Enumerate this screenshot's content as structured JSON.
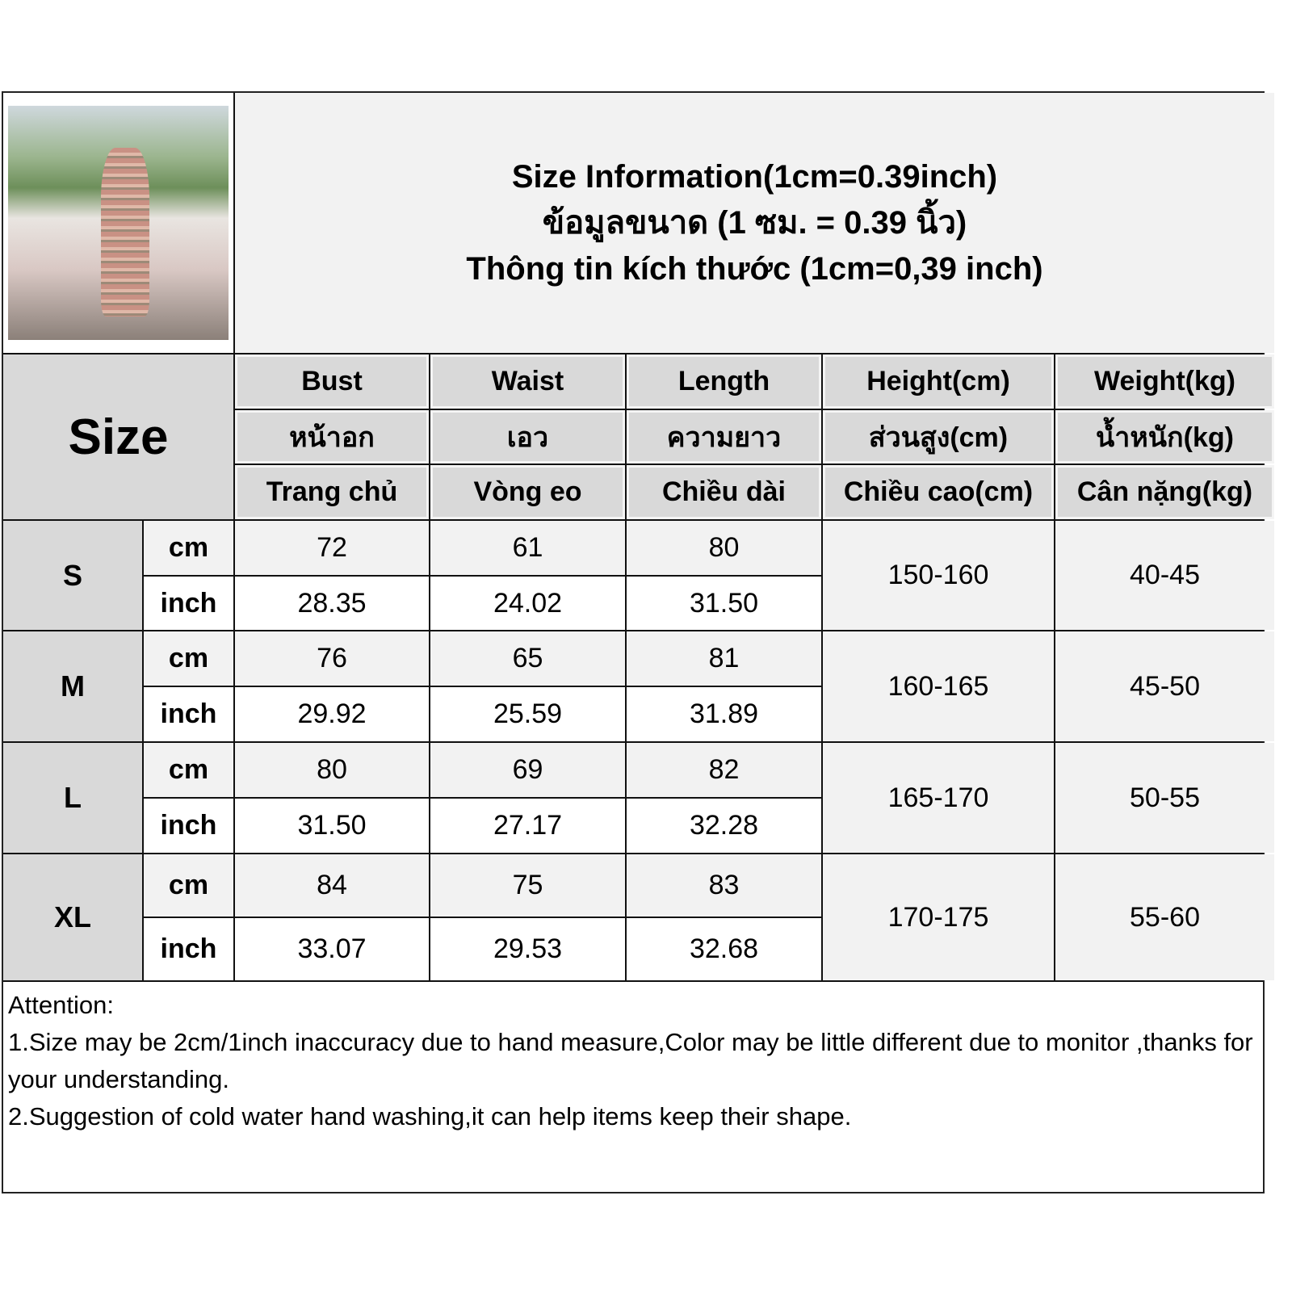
{
  "title_lines": [
    "Size Information(1cm=0.39inch)",
    "ข้อมูลขนาด (1 ซม. = 0.39 นิ้ว)",
    "Thông tin kích thước (1cm=0,39 inch)"
  ],
  "size_header": "Size",
  "columns": [
    {
      "en": "Bust",
      "th": "หน้าอก",
      "vi": "Trang chủ"
    },
    {
      "en": "Waist",
      "th": "เอว",
      "vi": "Vòng eo"
    },
    {
      "en": "Length",
      "th": "ความยาว",
      "vi": "Chiều dài"
    },
    {
      "en": "Height(cm)",
      "th": "ส่วนสูง(cm)",
      "vi": "Chiều cao(cm)"
    },
    {
      "en": "Weight(kg)",
      "th": "น้ำหนัก(kg)",
      "vi": "Cân nặng(kg)"
    }
  ],
  "units": {
    "cm": "cm",
    "inch": "inch"
  },
  "rows": [
    {
      "size": "S",
      "cm": [
        "72",
        "61",
        "80"
      ],
      "inch": [
        "28.35",
        "24.02",
        "31.50"
      ],
      "height": "150-160",
      "weight": "40-45"
    },
    {
      "size": "M",
      "cm": [
        "76",
        "65",
        "81"
      ],
      "inch": [
        "29.92",
        "25.59",
        "31.89"
      ],
      "height": "160-165",
      "weight": "45-50"
    },
    {
      "size": "L",
      "cm": [
        "80",
        "69",
        "82"
      ],
      "inch": [
        "31.50",
        "27.17",
        "32.28"
      ],
      "height": "165-170",
      "weight": "50-55"
    },
    {
      "size": "XL",
      "cm": [
        "84",
        "75",
        "83"
      ],
      "inch": [
        "33.07",
        "29.53",
        "32.68"
      ],
      "height": "170-175",
      "weight": "55-60"
    }
  ],
  "notes": [
    "Attention:",
    "1.Size may be 2cm/1inch inaccuracy due to hand measure,Color may be little different due to monitor ,thanks for your understanding.",
    "2.Suggestion of cold water hand washing,it can help items keep their shape."
  ]
}
